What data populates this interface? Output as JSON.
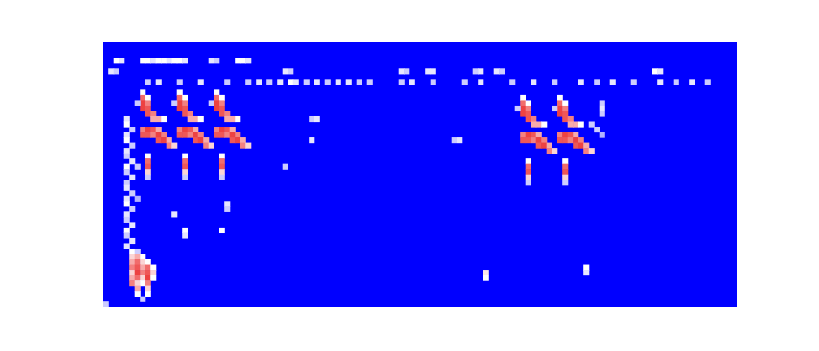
{
  "chart_data": {
    "type": "heatmap",
    "xlim": [
      0,
      120
    ],
    "ylim": [
      0,
      50
    ],
    "zlim": [
      0,
      1
    ],
    "tick_labels": false,
    "cells": [
      [
        7,
        9,
        0.5
      ],
      [
        7,
        10,
        0.85
      ],
      [
        8,
        10,
        0.5
      ],
      [
        7,
        11,
        0.95
      ],
      [
        8,
        11,
        0.8
      ],
      [
        6,
        11,
        0.4
      ],
      [
        7,
        12,
        0.95
      ],
      [
        8,
        12,
        0.9
      ],
      [
        8,
        13,
        0.9
      ],
      [
        9,
        13,
        0.8
      ],
      [
        9,
        14,
        0.7
      ],
      [
        10,
        14,
        0.7
      ],
      [
        11,
        14,
        0.5
      ],
      [
        7,
        16,
        0.8
      ],
      [
        8,
        16,
        0.95
      ],
      [
        9,
        16,
        0.9
      ],
      [
        10,
        16,
        0.7
      ],
      [
        7,
        17,
        0.9
      ],
      [
        8,
        17,
        0.9
      ],
      [
        9,
        17,
        0.8
      ],
      [
        10,
        17,
        0.95
      ],
      [
        11,
        17,
        0.8
      ],
      [
        10,
        18,
        0.9
      ],
      [
        11,
        18,
        0.95
      ],
      [
        12,
        18,
        0.7
      ],
      [
        12,
        19,
        0.8
      ],
      [
        13,
        19,
        0.6
      ],
      [
        8,
        21,
        0.5
      ],
      [
        8,
        22,
        0.85
      ],
      [
        8,
        23,
        0.9
      ],
      [
        8,
        24,
        0.6
      ],
      [
        8,
        25,
        0.4
      ],
      [
        14,
        9,
        0.5
      ],
      [
        14,
        10,
        0.85
      ],
      [
        15,
        10,
        0.5
      ],
      [
        14,
        11,
        0.95
      ],
      [
        15,
        11,
        0.8
      ],
      [
        13,
        11,
        0.4
      ],
      [
        14,
        12,
        0.95
      ],
      [
        15,
        12,
        0.9
      ],
      [
        15,
        13,
        0.9
      ],
      [
        16,
        13,
        0.8
      ],
      [
        16,
        14,
        0.7
      ],
      [
        17,
        14,
        0.7
      ],
      [
        18,
        14,
        0.5
      ],
      [
        14,
        16,
        0.8
      ],
      [
        15,
        16,
        0.95
      ],
      [
        16,
        16,
        0.9
      ],
      [
        17,
        16,
        0.7
      ],
      [
        14,
        17,
        0.9
      ],
      [
        15,
        17,
        0.9
      ],
      [
        16,
        17,
        0.8
      ],
      [
        17,
        17,
        0.95
      ],
      [
        18,
        17,
        0.8
      ],
      [
        17,
        18,
        0.9
      ],
      [
        18,
        18,
        0.95
      ],
      [
        19,
        18,
        0.7
      ],
      [
        19,
        19,
        0.8
      ],
      [
        20,
        19,
        0.6
      ],
      [
        15,
        21,
        0.5
      ],
      [
        15,
        22,
        0.85
      ],
      [
        15,
        23,
        0.9
      ],
      [
        15,
        24,
        0.6
      ],
      [
        15,
        25,
        0.4
      ],
      [
        21,
        9,
        0.5
      ],
      [
        21,
        10,
        0.85
      ],
      [
        22,
        10,
        0.5
      ],
      [
        21,
        11,
        0.95
      ],
      [
        22,
        11,
        0.8
      ],
      [
        20,
        11,
        0.4
      ],
      [
        21,
        12,
        0.95
      ],
      [
        22,
        12,
        0.9
      ],
      [
        22,
        13,
        0.9
      ],
      [
        23,
        13,
        0.8
      ],
      [
        23,
        14,
        0.7
      ],
      [
        24,
        14,
        0.7
      ],
      [
        25,
        14,
        0.5
      ],
      [
        21,
        16,
        0.8
      ],
      [
        22,
        16,
        0.95
      ],
      [
        23,
        16,
        0.9
      ],
      [
        24,
        16,
        0.7
      ],
      [
        21,
        17,
        0.9
      ],
      [
        22,
        17,
        0.9
      ],
      [
        23,
        17,
        0.8
      ],
      [
        24,
        17,
        0.95
      ],
      [
        25,
        17,
        0.8
      ],
      [
        24,
        18,
        0.9
      ],
      [
        25,
        18,
        0.95
      ],
      [
        26,
        18,
        0.7
      ],
      [
        26,
        19,
        0.8
      ],
      [
        27,
        19,
        0.6
      ],
      [
        22,
        21,
        0.5
      ],
      [
        22,
        22,
        0.85
      ],
      [
        22,
        23,
        0.9
      ],
      [
        22,
        24,
        0.6
      ],
      [
        22,
        25,
        0.4
      ],
      [
        79,
        10,
        0.5
      ],
      [
        79,
        11,
        0.85
      ],
      [
        80,
        11,
        0.5
      ],
      [
        79,
        12,
        0.95
      ],
      [
        80,
        12,
        0.8
      ],
      [
        78,
        12,
        0.4
      ],
      [
        79,
        13,
        0.95
      ],
      [
        80,
        13,
        0.9
      ],
      [
        80,
        14,
        0.9
      ],
      [
        81,
        14,
        0.8
      ],
      [
        81,
        15,
        0.7
      ],
      [
        82,
        15,
        0.7
      ],
      [
        83,
        15,
        0.5
      ],
      [
        79,
        17,
        0.8
      ],
      [
        80,
        17,
        0.95
      ],
      [
        81,
        17,
        0.9
      ],
      [
        82,
        17,
        0.7
      ],
      [
        79,
        18,
        0.9
      ],
      [
        80,
        18,
        0.9
      ],
      [
        81,
        18,
        0.8
      ],
      [
        82,
        18,
        0.95
      ],
      [
        83,
        18,
        0.8
      ],
      [
        82,
        19,
        0.9
      ],
      [
        83,
        19,
        0.95
      ],
      [
        84,
        19,
        0.7
      ],
      [
        84,
        20,
        0.8
      ],
      [
        85,
        20,
        0.6
      ],
      [
        80,
        22,
        0.5
      ],
      [
        80,
        23,
        0.85
      ],
      [
        80,
        24,
        0.9
      ],
      [
        80,
        25,
        0.6
      ],
      [
        80,
        26,
        0.4
      ],
      [
        86,
        10,
        0.5
      ],
      [
        86,
        11,
        0.85
      ],
      [
        87,
        11,
        0.5
      ],
      [
        86,
        12,
        0.95
      ],
      [
        87,
        12,
        0.8
      ],
      [
        85,
        12,
        0.4
      ],
      [
        86,
        13,
        0.95
      ],
      [
        87,
        13,
        0.9
      ],
      [
        87,
        14,
        0.9
      ],
      [
        88,
        14,
        0.8
      ],
      [
        88,
        15,
        0.7
      ],
      [
        89,
        15,
        0.7
      ],
      [
        90,
        15,
        0.5
      ],
      [
        86,
        17,
        0.8
      ],
      [
        87,
        17,
        0.95
      ],
      [
        88,
        17,
        0.9
      ],
      [
        89,
        17,
        0.7
      ],
      [
        86,
        18,
        0.9
      ],
      [
        87,
        18,
        0.9
      ],
      [
        88,
        18,
        0.8
      ],
      [
        89,
        18,
        0.95
      ],
      [
        90,
        18,
        0.8
      ],
      [
        89,
        19,
        0.9
      ],
      [
        90,
        19,
        0.95
      ],
      [
        91,
        19,
        0.7
      ],
      [
        91,
        20,
        0.8
      ],
      [
        92,
        20,
        0.6
      ],
      [
        87,
        22,
        0.5
      ],
      [
        87,
        23,
        0.85
      ],
      [
        87,
        24,
        0.9
      ],
      [
        87,
        25,
        0.6
      ],
      [
        87,
        26,
        0.4
      ],
      [
        94,
        11,
        0.4
      ],
      [
        94,
        12,
        0.45
      ],
      [
        94,
        13,
        0.4
      ],
      [
        93,
        16,
        0.4
      ],
      [
        94,
        17,
        0.35
      ],
      [
        92,
        15,
        0.4
      ],
      [
        2,
        3,
        0.5
      ],
      [
        3,
        3,
        0.45
      ],
      [
        7,
        3,
        0.5
      ],
      [
        8,
        3,
        0.5
      ],
      [
        9,
        3,
        0.45
      ],
      [
        10,
        3,
        0.5
      ],
      [
        11,
        3,
        0.5
      ],
      [
        12,
        3,
        0.45
      ],
      [
        13,
        3,
        0.5
      ],
      [
        14,
        3,
        0.5
      ],
      [
        15,
        3,
        0.45
      ],
      [
        20,
        3,
        0.45
      ],
      [
        21,
        3,
        0.4
      ],
      [
        25,
        3,
        0.5
      ],
      [
        26,
        3,
        0.5
      ],
      [
        27,
        3,
        0.45
      ],
      [
        1,
        5,
        0.45
      ],
      [
        2,
        5,
        0.4
      ],
      [
        34,
        5,
        0.45
      ],
      [
        35,
        5,
        0.4
      ],
      [
        56,
        5,
        0.45
      ],
      [
        57,
        5,
        0.4
      ],
      [
        61,
        5,
        0.45
      ],
      [
        62,
        5,
        0.45
      ],
      [
        70,
        5,
        0.4
      ],
      [
        71,
        5,
        0.45
      ],
      [
        74,
        5,
        0.45
      ],
      [
        75,
        5,
        0.4
      ],
      [
        104,
        5,
        0.5
      ],
      [
        105,
        5,
        0.45
      ],
      [
        8,
        7,
        0.4
      ],
      [
        10,
        7,
        0.45
      ],
      [
        14,
        7,
        0.4
      ],
      [
        18,
        7,
        0.45
      ],
      [
        23,
        7,
        0.4
      ],
      [
        27,
        7,
        0.4
      ],
      [
        29,
        7,
        0.45
      ],
      [
        31,
        7,
        0.4
      ],
      [
        33,
        7,
        0.45
      ],
      [
        35,
        7,
        0.5
      ],
      [
        36,
        7,
        0.45
      ],
      [
        38,
        7,
        0.4
      ],
      [
        40,
        7,
        0.45
      ],
      [
        42,
        7,
        0.4
      ],
      [
        44,
        7,
        0.45
      ],
      [
        46,
        7,
        0.45
      ],
      [
        48,
        7,
        0.4
      ],
      [
        50,
        7,
        0.4
      ],
      [
        56,
        7,
        0.4
      ],
      [
        58,
        7,
        0.45
      ],
      [
        62,
        7,
        0.4
      ],
      [
        68,
        7,
        0.4
      ],
      [
        71,
        7,
        0.45
      ],
      [
        77,
        7,
        0.4
      ],
      [
        81,
        7,
        0.45
      ],
      [
        85,
        7,
        0.4
      ],
      [
        90,
        7,
        0.45
      ],
      [
        93,
        7,
        0.4
      ],
      [
        96,
        7,
        0.45
      ],
      [
        100,
        7,
        0.4
      ],
      [
        105,
        7,
        0.45
      ],
      [
        108,
        7,
        0.4
      ],
      [
        111,
        7,
        0.45
      ],
      [
        114,
        7,
        0.4
      ],
      [
        4,
        14,
        0.45
      ],
      [
        4,
        15,
        0.5
      ],
      [
        5,
        16,
        0.4
      ],
      [
        4,
        17,
        0.45
      ],
      [
        4,
        18,
        0.5
      ],
      [
        5,
        19,
        0.4
      ],
      [
        4,
        20,
        0.45
      ],
      [
        4,
        21,
        0.4
      ],
      [
        5,
        22,
        0.45
      ],
      [
        4,
        23,
        0.5
      ],
      [
        4,
        24,
        0.4
      ],
      [
        5,
        25,
        0.45
      ],
      [
        4,
        26,
        0.4
      ],
      [
        4,
        27,
        0.45
      ],
      [
        5,
        28,
        0.4
      ],
      [
        4,
        29,
        0.45
      ],
      [
        4,
        30,
        0.5
      ],
      [
        5,
        31,
        0.4
      ],
      [
        4,
        32,
        0.45
      ],
      [
        4,
        33,
        0.4
      ],
      [
        5,
        34,
        0.45
      ],
      [
        4,
        35,
        0.5
      ],
      [
        4,
        36,
        0.4
      ],
      [
        5,
        37,
        0.45
      ],
      [
        4,
        38,
        0.45
      ],
      [
        6,
        23,
        0.4
      ],
      [
        6,
        29,
        0.35
      ],
      [
        5,
        39,
        0.5
      ],
      [
        6,
        39,
        0.4
      ],
      [
        5,
        40,
        0.6
      ],
      [
        6,
        40,
        0.7
      ],
      [
        7,
        40,
        0.5
      ],
      [
        5,
        41,
        0.7
      ],
      [
        6,
        41,
        0.85
      ],
      [
        7,
        41,
        0.6
      ],
      [
        8,
        41,
        0.5
      ],
      [
        5,
        42,
        0.8
      ],
      [
        6,
        42,
        0.9
      ],
      [
        7,
        42,
        0.7
      ],
      [
        8,
        42,
        0.85
      ],
      [
        9,
        42,
        0.5
      ],
      [
        5,
        43,
        0.6
      ],
      [
        6,
        43,
        0.95
      ],
      [
        7,
        43,
        0.8
      ],
      [
        8,
        43,
        0.9
      ],
      [
        9,
        43,
        0.6
      ],
      [
        5,
        44,
        0.7
      ],
      [
        6,
        44,
        0.85
      ],
      [
        7,
        44,
        0.6
      ],
      [
        8,
        44,
        0.95
      ],
      [
        9,
        44,
        0.5
      ],
      [
        5,
        45,
        0.8
      ],
      [
        6,
        45,
        0.6
      ],
      [
        7,
        45,
        0.5
      ],
      [
        8,
        45,
        0.8
      ],
      [
        6,
        46,
        0.7
      ],
      [
        8,
        46,
        0.6
      ],
      [
        6,
        47,
        0.5
      ],
      [
        8,
        47,
        0.5
      ],
      [
        7,
        48,
        0.4
      ],
      [
        0,
        49,
        0.4
      ],
      [
        13,
        32,
        0.45
      ],
      [
        15,
        35,
        0.5
      ],
      [
        15,
        36,
        0.45
      ],
      [
        22,
        35,
        0.5
      ],
      [
        23,
        30,
        0.45
      ],
      [
        23,
        31,
        0.4
      ],
      [
        72,
        43,
        0.55
      ],
      [
        72,
        44,
        0.5
      ],
      [
        91,
        42,
        0.5
      ],
      [
        91,
        43,
        0.45
      ],
      [
        39,
        14,
        0.4
      ],
      [
        40,
        14,
        0.45
      ],
      [
        39,
        18,
        0.45
      ],
      [
        34,
        23,
        0.4
      ],
      [
        66,
        18,
        0.4
      ],
      [
        67,
        18,
        0.45
      ]
    ]
  }
}
